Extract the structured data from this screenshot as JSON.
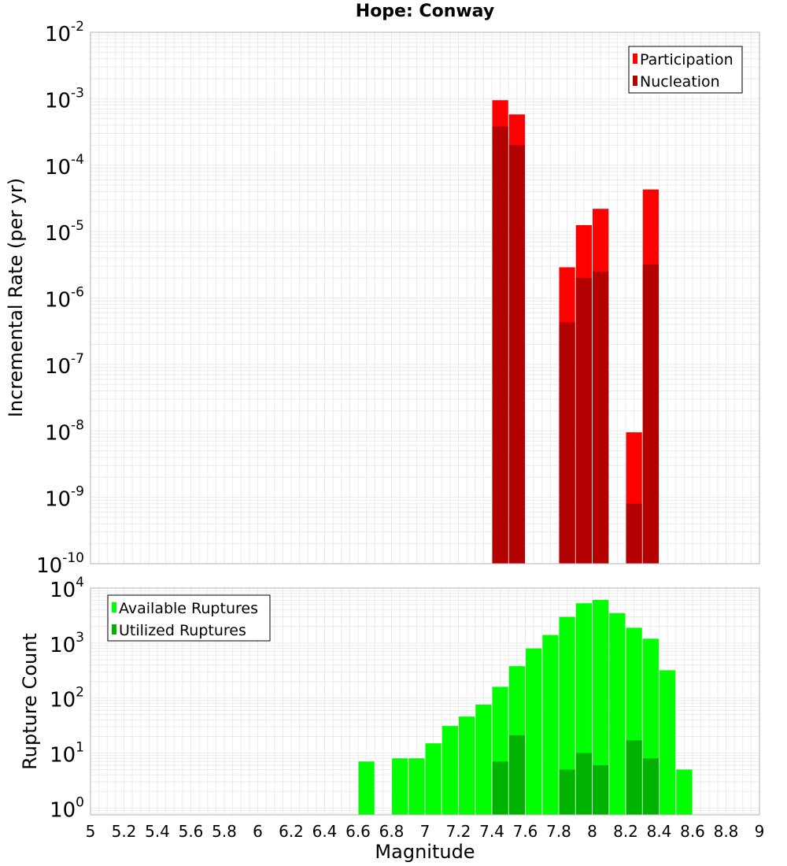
{
  "title": "Hope: Conway",
  "xlabel": "Magnitude",
  "colors": {
    "participation": "#ff0000",
    "nucleation": "#b30000",
    "available": "#00ff00",
    "utilized": "#00b300",
    "grid": "#ebebeb",
    "border": "#b3b3b3"
  },
  "chart_data": [
    {
      "type": "bar",
      "ylabel": "Incremental Rate (per yr)",
      "yscale": "log",
      "ylim": [
        1e-10,
        0.01
      ],
      "xlim": [
        5,
        9
      ],
      "grid": true,
      "legend_placement": "top-right",
      "x": [
        7.45,
        7.55,
        7.85,
        7.95,
        8.05,
        8.25,
        8.35
      ],
      "series": [
        {
          "name": "Participation",
          "values": [
            0.00095,
            0.00058,
            2.9e-06,
            1.25e-05,
            2.2e-05,
            9.5e-09,
            4.3e-05
          ]
        },
        {
          "name": "Nucleation",
          "values": [
            0.00038,
            0.0002,
            4.3e-07,
            2e-06,
            2.5e-06,
            8e-10,
            3.2e-06
          ]
        }
      ]
    },
    {
      "type": "bar",
      "ylabel": "Rupture Count",
      "xlabel": "Magnitude",
      "yscale": "log",
      "ylim": [
        0.75,
        10000
      ],
      "xlim": [
        5,
        9
      ],
      "grid": true,
      "legend_placement": "top-left",
      "x": [
        6.65,
        6.85,
        6.95,
        7.05,
        7.15,
        7.25,
        7.35,
        7.45,
        7.55,
        7.65,
        7.75,
        7.85,
        7.95,
        8.05,
        8.15,
        8.25,
        8.35,
        8.45,
        8.55
      ],
      "series": [
        {
          "name": "Available Ruptures",
          "values": [
            7,
            8,
            8,
            15,
            31,
            46,
            76,
            160,
            380,
            800,
            1400,
            3000,
            5300,
            6100,
            3500,
            1900,
            1200,
            320,
            5
          ]
        },
        {
          "name": "Utilized Ruptures",
          "values": [
            0,
            0,
            0,
            0,
            0,
            0,
            0,
            7,
            21,
            0,
            0,
            5,
            10,
            6,
            0,
            17,
            8,
            0,
            0
          ]
        }
      ]
    }
  ],
  "x_ticks": [
    "5",
    "5.2",
    "5.4",
    "5.6",
    "5.8",
    "6",
    "6.2",
    "6.4",
    "6.6",
    "6.8",
    "7",
    "7.2",
    "7.4",
    "7.6",
    "7.8",
    "8",
    "8.2",
    "8.4",
    "8.6",
    "8.8",
    "9"
  ],
  "top_y_ticks": [
    {
      "base": "10",
      "exp": "-2"
    },
    {
      "base": "10",
      "exp": "-3"
    },
    {
      "base": "10",
      "exp": "-4"
    },
    {
      "base": "10",
      "exp": "-5"
    },
    {
      "base": "10",
      "exp": "-6"
    },
    {
      "base": "10",
      "exp": "-7"
    },
    {
      "base": "10",
      "exp": "-8"
    },
    {
      "base": "10",
      "exp": "-9"
    },
    {
      "base": "10",
      "exp": "-10"
    }
  ],
  "bottom_y_ticks": [
    {
      "base": "10",
      "exp": "4"
    },
    {
      "base": "10",
      "exp": "3"
    },
    {
      "base": "10",
      "exp": "2"
    },
    {
      "base": "10",
      "exp": "1"
    },
    {
      "base": "10",
      "exp": "0"
    }
  ]
}
